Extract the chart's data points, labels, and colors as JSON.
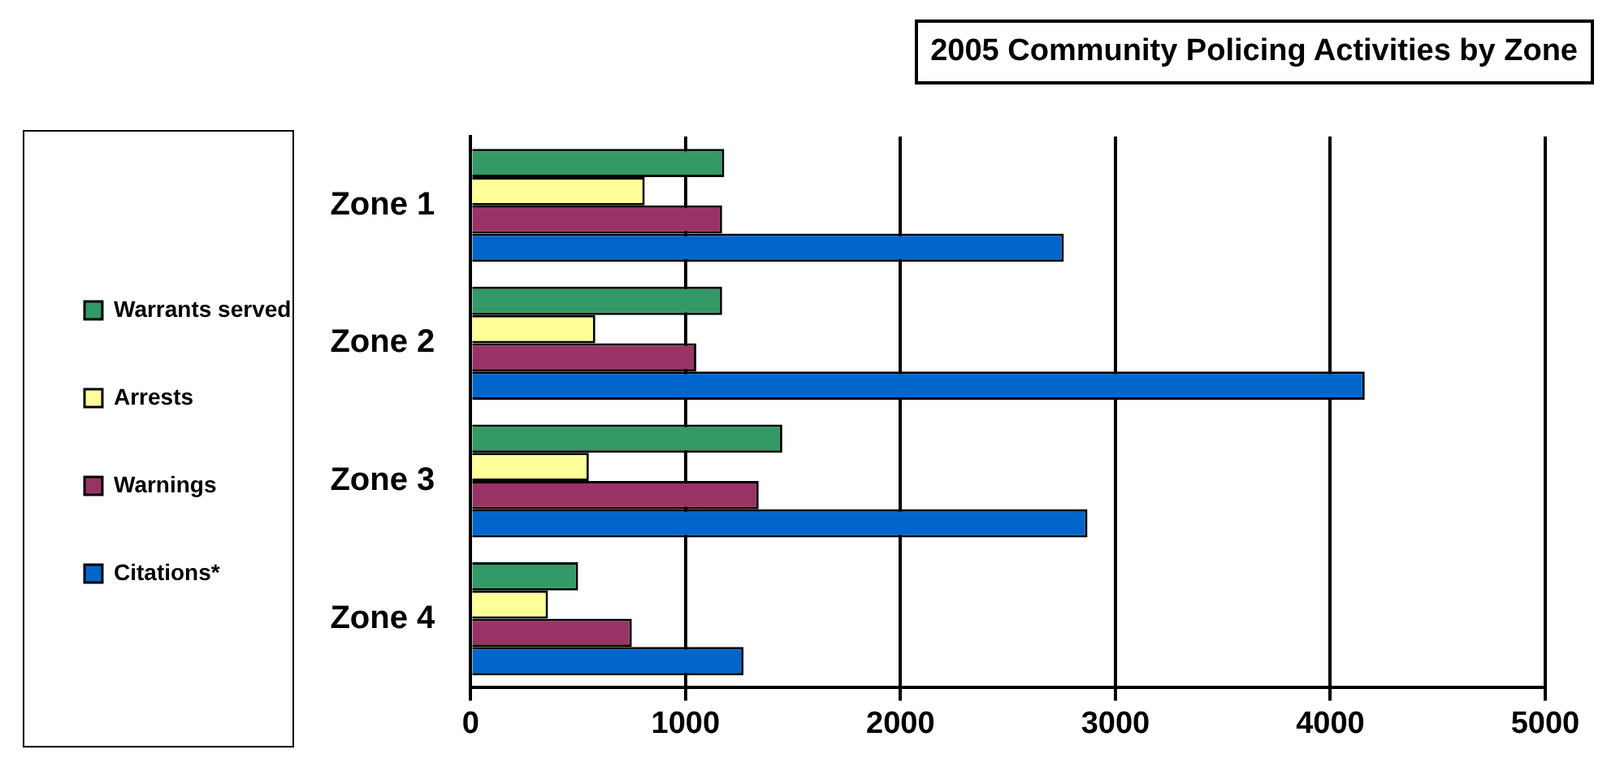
{
  "chart_data": {
    "type": "bar",
    "orientation": "horizontal",
    "title": "2005 Community Policing Activities by Zone",
    "categories": [
      "Zone 1",
      "Zone 2",
      "Zone 3",
      "Zone 4"
    ],
    "series": [
      {
        "name": "Warrants served",
        "color": "#339966",
        "values": [
          1180,
          1170,
          1450,
          500
        ]
      },
      {
        "name": "Arrests",
        "color": "#ffff99",
        "values": [
          810,
          580,
          550,
          360
        ]
      },
      {
        "name": "Warnings",
        "color": "#993366",
        "values": [
          1170,
          1050,
          1340,
          750
        ]
      },
      {
        "name": "Citations*",
        "color": "#0066cc",
        "values": [
          2760,
          4160,
          2870,
          1270
        ]
      }
    ],
    "xlim": [
      0,
      5000
    ],
    "xticks": [
      0,
      1000,
      2000,
      3000,
      4000,
      5000
    ],
    "grid": "x",
    "legend": "left"
  }
}
